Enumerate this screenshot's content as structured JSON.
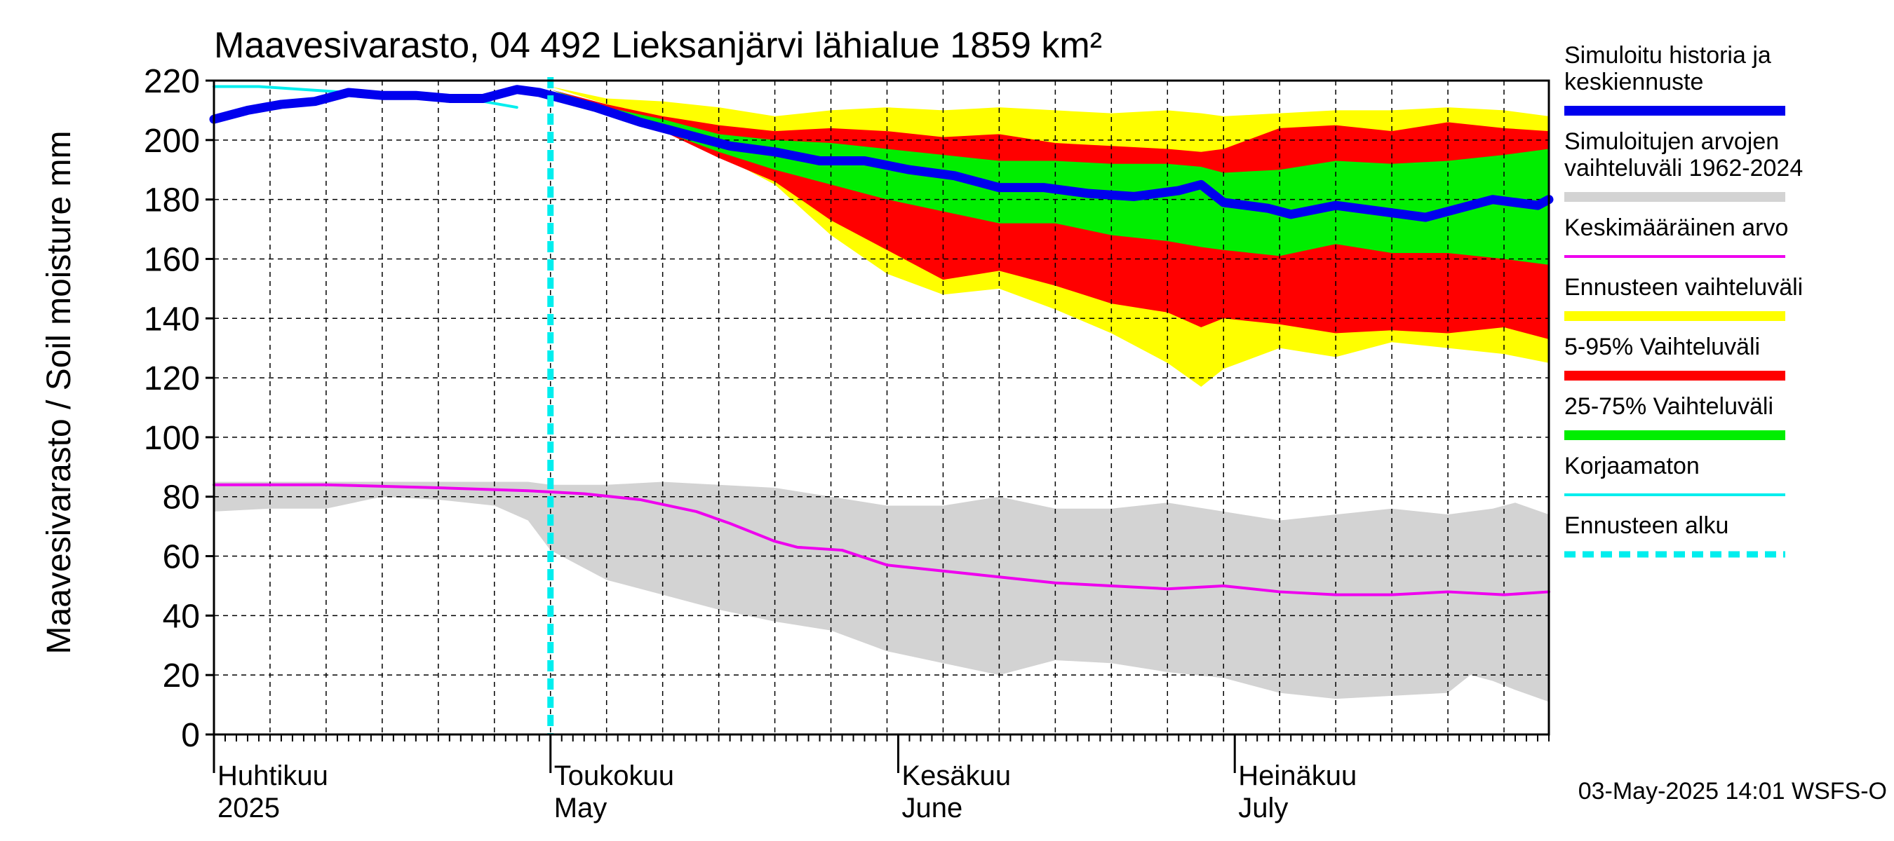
{
  "chart_data": {
    "type": "line",
    "title": "Maavesivarasto, 04 492 Lieksanjärvi lähialue 1859 km²",
    "ylabel": "Maavesivarasto / Soil moisture   mm",
    "ylim": [
      0,
      220
    ],
    "yticks": [
      0,
      20,
      40,
      60,
      80,
      100,
      120,
      140,
      160,
      180,
      200,
      220
    ],
    "x_domain_days": [
      0,
      119
    ],
    "x_note": "x values are days since 2025-04-01",
    "month_labels": [
      {
        "day": 0,
        "fi": "Huhtikuu",
        "en": "2025"
      },
      {
        "day": 30,
        "fi": "Toukokuu",
        "en": "May"
      },
      {
        "day": 61,
        "fi": "Kesäkuu",
        "en": "June"
      },
      {
        "day": 91,
        "fi": "Heinäkuu",
        "en": "July"
      }
    ],
    "forecast_start_day": 30,
    "timestamp": "03-May-2025 14:01 WSFS-O",
    "colors": {
      "history": "#0000ee",
      "historical_range": "#d3d3d3",
      "mean": "#ee00ee",
      "forecast_range": "#ffff00",
      "p5_95": "#ff0000",
      "p25_75": "#00ee00",
      "uncorrected": "#00eeee",
      "forecast_start": "#00eeee"
    },
    "legend": [
      {
        "label": "Simuloitu historia ja keskiennuste",
        "color": "#0000ee",
        "style": "thick"
      },
      {
        "label": "Simuloitujen arvojen vaihteluväli 1962-2024",
        "color": "#d3d3d3",
        "style": "thick"
      },
      {
        "label": "Keskimääräinen arvo",
        "color": "#ee00ee",
        "style": "thin"
      },
      {
        "label": "Ennusteen vaihteluväli",
        "color": "#ffff00",
        "style": "thick"
      },
      {
        "label": "5-95% Vaihteluväli",
        "color": "#ff0000",
        "style": "thick"
      },
      {
        "label": "25-75% Vaihteluväli",
        "color": "#00ee00",
        "style": "thick"
      },
      {
        "label": "Korjaamaton",
        "color": "#00eeee",
        "style": "thin"
      },
      {
        "label": "Ennusteen alku",
        "color": "#00eeee",
        "style": "dashed"
      }
    ],
    "series": [
      {
        "name": "Simuloitu historia ja keskiennuste",
        "x": [
          0,
          3,
          6,
          9,
          12,
          15,
          18,
          21,
          24,
          27,
          29,
          34,
          38,
          42,
          46,
          50,
          54,
          58,
          62,
          66,
          70,
          74,
          78,
          82,
          86,
          88,
          90,
          94,
          96,
          100,
          104,
          108,
          112,
          114,
          116,
          118,
          119
        ],
        "y": [
          207,
          210,
          212,
          213,
          216,
          215,
          215,
          214,
          214,
          217,
          216,
          211,
          206,
          202,
          198,
          196,
          193,
          193,
          190,
          188,
          184,
          184,
          182,
          181,
          183,
          185,
          179,
          177,
          175,
          178,
          176,
          174,
          178,
          180,
          179,
          178,
          180
        ]
      },
      {
        "name": "Korjaamaton",
        "x": [
          0,
          4,
          8,
          12,
          16,
          20,
          24,
          27
        ],
        "y": [
          218,
          218,
          217,
          216,
          215,
          214,
          213,
          211
        ]
      },
      {
        "name": "Keskimääräinen arvo",
        "x": [
          0,
          10,
          20,
          28,
          33,
          38,
          43,
          46,
          50,
          52,
          56,
          60,
          65,
          70,
          75,
          80,
          85,
          90,
          95,
          100,
          105,
          110,
          115,
          119
        ],
        "y": [
          84,
          84,
          83,
          82,
          81,
          79,
          75,
          71,
          65,
          63,
          62,
          57,
          55,
          53,
          51,
          50,
          49,
          50,
          48,
          47,
          47,
          48,
          47,
          48
        ]
      }
    ],
    "bands": [
      {
        "name": "Simuloitujen arvojen vaihteluväli 1962-2024",
        "x": [
          0,
          5,
          10,
          15,
          20,
          25,
          28,
          30,
          35,
          40,
          45,
          50,
          55,
          60,
          65,
          70,
          75,
          80,
          85,
          90,
          95,
          100,
          105,
          110,
          112,
          114,
          116,
          119
        ],
        "upper": [
          85,
          85,
          85,
          85,
          85,
          85,
          85,
          84,
          84,
          85,
          84,
          83,
          80,
          77,
          77,
          80,
          76,
          76,
          78,
          75,
          72,
          74,
          76,
          74,
          75,
          76,
          78,
          74
        ],
        "lower": [
          75,
          76,
          76,
          80,
          79,
          77,
          72,
          62,
          52,
          47,
          42,
          38,
          35,
          28,
          24,
          20,
          25,
          24,
          21,
          19,
          14,
          12,
          13,
          14,
          20,
          18,
          15,
          11
        ]
      },
      {
        "name": "Ennusteen vaihteluväli",
        "x": [
          30,
          35,
          40,
          45,
          50,
          55,
          60,
          65,
          70,
          75,
          80,
          85,
          88,
          90,
          95,
          100,
          105,
          110,
          115,
          119
        ],
        "upper": [
          218,
          214,
          213,
          211,
          208,
          210,
          211,
          210,
          211,
          210,
          209,
          210,
          209,
          208,
          209,
          210,
          210,
          211,
          210,
          208
        ],
        "lower": [
          218,
          212,
          205,
          195,
          185,
          168,
          155,
          148,
          150,
          143,
          135,
          125,
          117,
          123,
          130,
          127,
          132,
          130,
          128,
          125
        ]
      },
      {
        "name": "5-95% Vaihteluväli",
        "x": [
          30,
          35,
          40,
          45,
          50,
          55,
          60,
          65,
          70,
          75,
          80,
          85,
          88,
          90,
          95,
          100,
          105,
          110,
          115,
          119
        ],
        "upper": [
          217,
          212,
          208,
          205,
          203,
          204,
          203,
          201,
          202,
          199,
          198,
          197,
          196,
          197,
          204,
          205,
          203,
          206,
          204,
          203
        ],
        "lower": [
          217,
          211,
          203,
          194,
          186,
          173,
          163,
          153,
          156,
          151,
          145,
          142,
          137,
          140,
          138,
          135,
          136,
          135,
          137,
          133
        ]
      },
      {
        "name": "25-75% Vaihteluväli",
        "x": [
          30,
          35,
          40,
          45,
          50,
          55,
          60,
          65,
          70,
          75,
          80,
          85,
          88,
          90,
          95,
          100,
          105,
          110,
          115,
          119
        ],
        "upper": [
          217,
          211,
          207,
          202,
          200,
          199,
          197,
          195,
          193,
          193,
          192,
          192,
          191,
          189,
          190,
          193,
          192,
          193,
          195,
          197
        ],
        "lower": [
          217,
          210,
          203,
          196,
          190,
          185,
          180,
          176,
          172,
          172,
          168,
          166,
          164,
          163,
          161,
          165,
          162,
          162,
          160,
          158
        ]
      }
    ]
  }
}
